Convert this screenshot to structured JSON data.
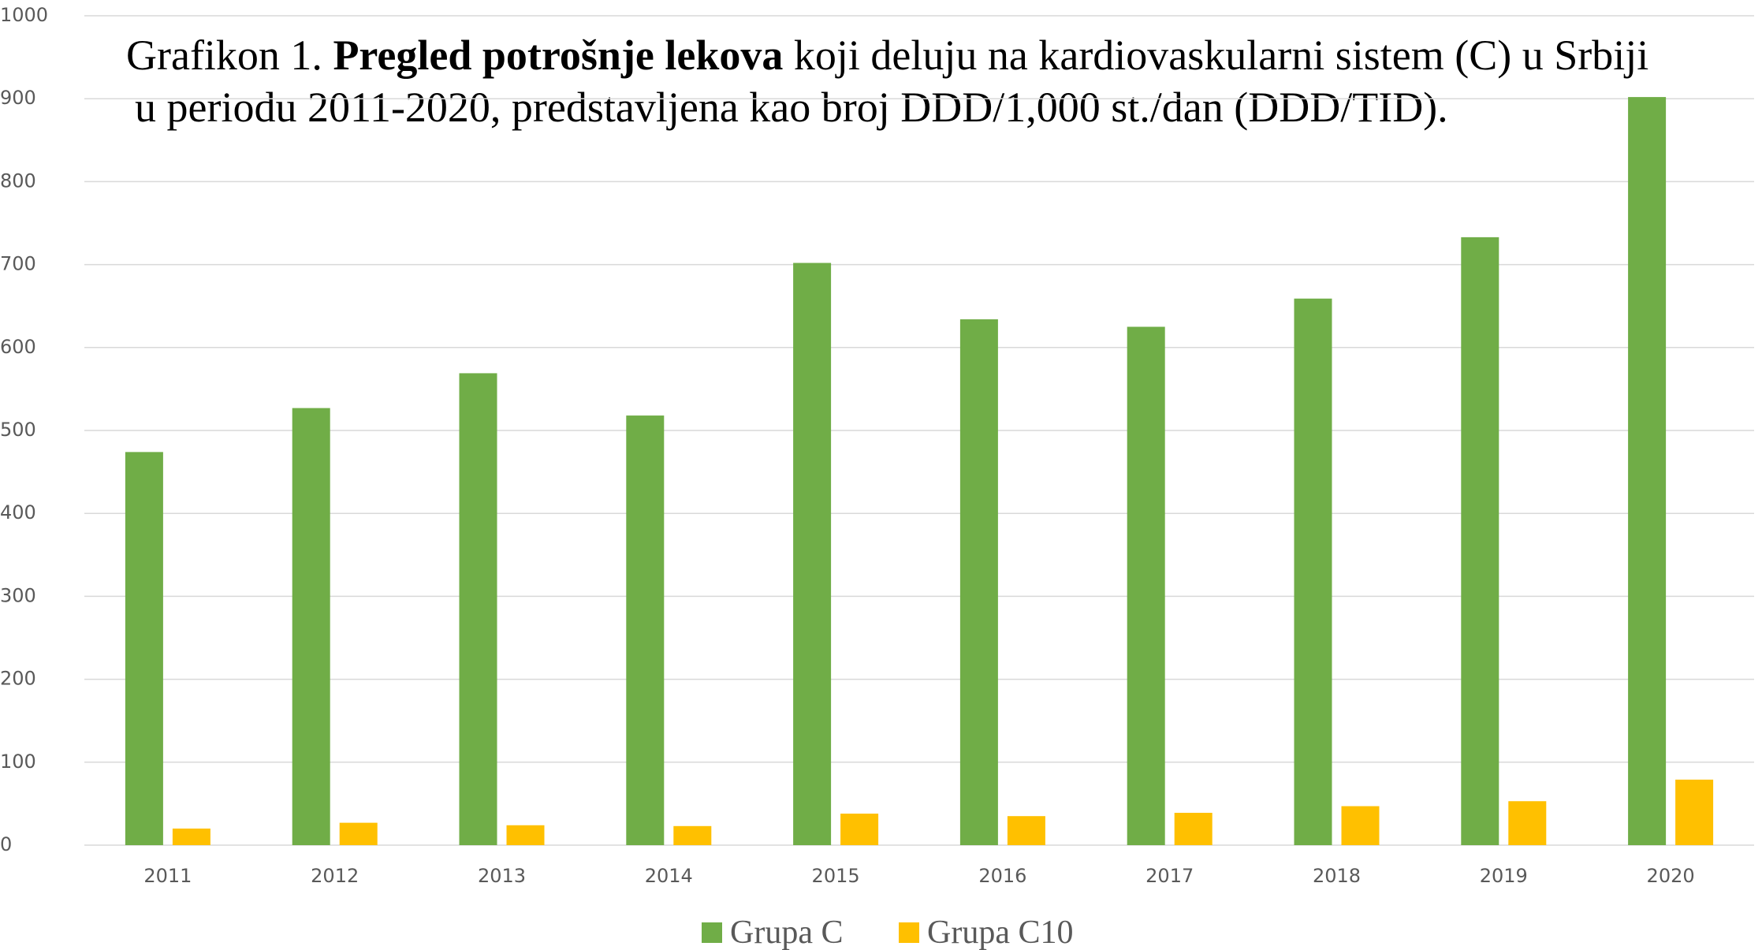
{
  "chart_data": {
    "type": "bar",
    "title": {
      "parts": [
        "Grafikon 1. ",
        "Pregled potrošnje lekova",
        " koji deluju na kardiovaskularni sistem (C) u Srbiji"
      ],
      "line2": "u periodu 2011-2020, predstavljena kao broj DDD/1,000 st./dan (DDD/TID)."
    },
    "categories": [
      "2011",
      "2012",
      "2013",
      "2014",
      "2015",
      "2016",
      "2017",
      "2018",
      "2019",
      "2020"
    ],
    "series": [
      {
        "name": "Grupa C",
        "color": "#70ad47",
        "values": [
          474,
          527,
          569,
          518,
          702,
          634,
          625,
          659,
          733,
          902
        ]
      },
      {
        "name": "Grupa C10",
        "color": "#ffc000",
        "values": [
          20,
          27,
          24,
          23,
          38,
          35,
          39,
          47,
          53,
          79
        ]
      }
    ],
    "ylim": [
      0,
      1000
    ],
    "yticks": [
      0,
      100,
      200,
      300,
      400,
      500,
      600,
      700,
      800,
      900,
      1000
    ],
    "grid": true,
    "legend": "bottom"
  }
}
